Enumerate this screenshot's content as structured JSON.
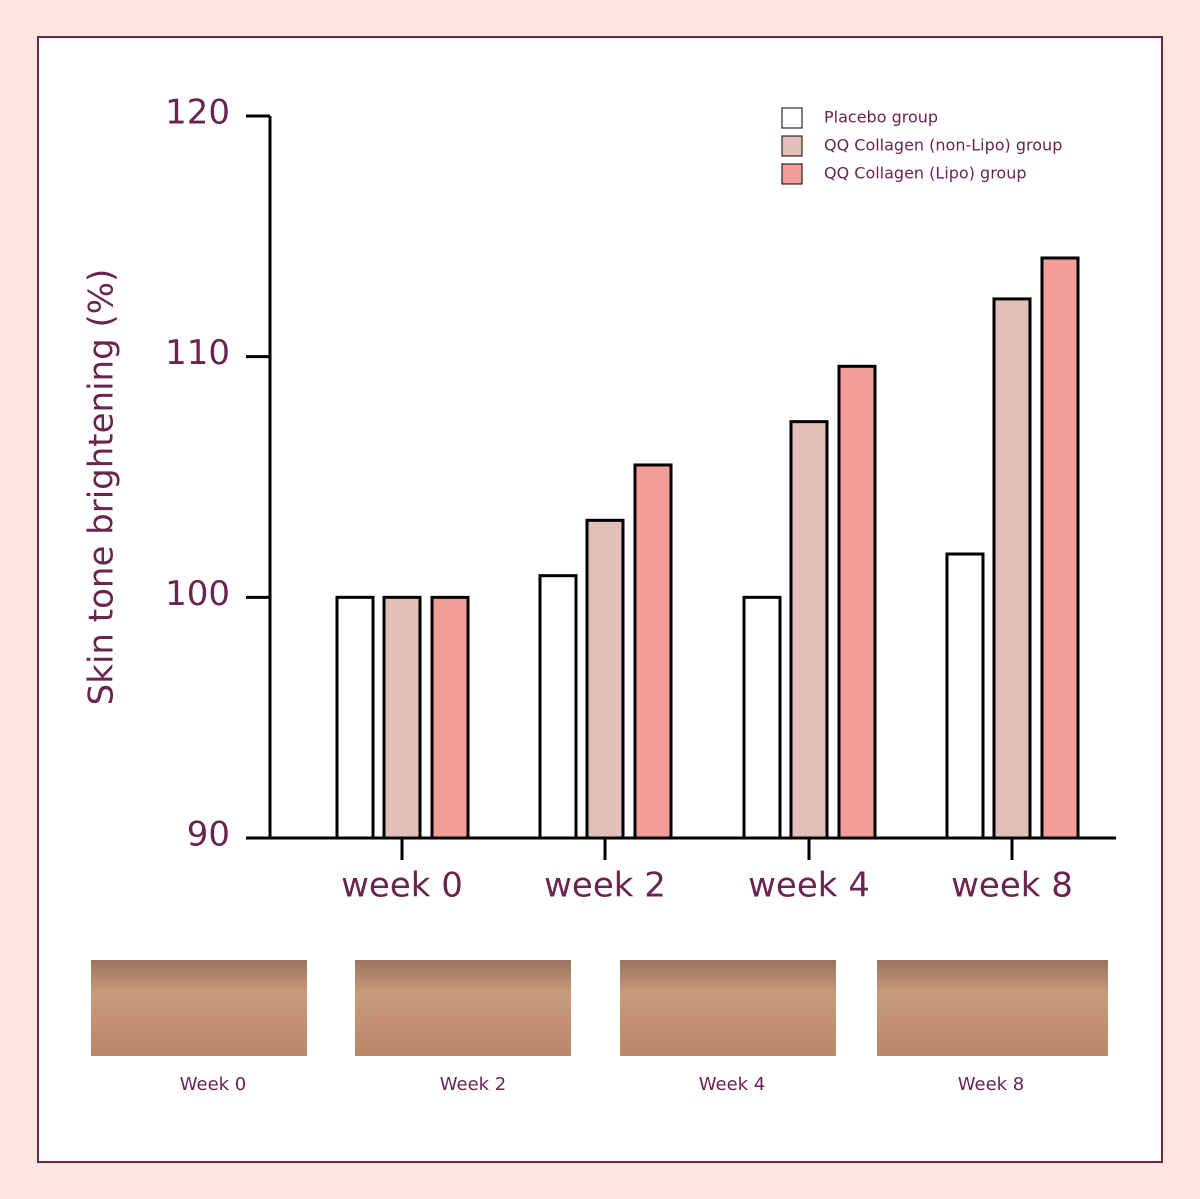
{
  "chart_data": {
    "type": "bar",
    "y_label": "Skin tone brightening (%)",
    "categories": [
      "week 0",
      "week 2",
      "week 4",
      "week 8"
    ],
    "series": [
      {
        "name": "Placebo group",
        "color": "#ffffff",
        "values": [
          100,
          100.9,
          100,
          101.8
        ]
      },
      {
        "name": "QQ Collagen (non-Lipo) group",
        "color": "#e3bfb9",
        "values": [
          100,
          103.2,
          107.3,
          112.4
        ]
      },
      {
        "name": "QQ Collagen (Lipo) group",
        "color": "#f29d97",
        "values": [
          100,
          105.5,
          109.6,
          114.1
        ]
      }
    ],
    "ylim": [
      90,
      120
    ],
    "yticks": [
      90,
      100,
      110,
      120
    ],
    "grid": false,
    "legend": "top-right"
  },
  "photo_captions": [
    "Week 0",
    "Week 2",
    "Week 4",
    "Week 8"
  ]
}
